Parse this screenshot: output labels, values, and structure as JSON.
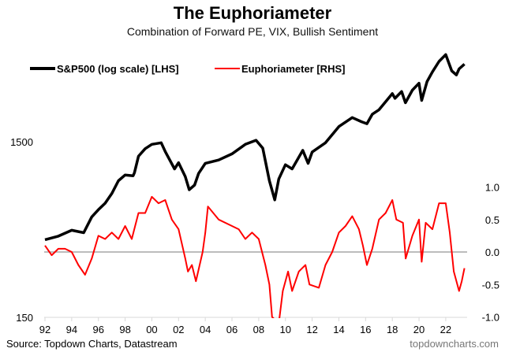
{
  "chart_data": {
    "type": "line",
    "title": "The Euphoriameter",
    "subtitle": "Combination of Forward PE, VIX, Bullish Sentiment",
    "source": "Source: Topdown Charts, Datastream",
    "brand": "topdowncharts.com",
    "x_ticks": [
      "92",
      "94",
      "96",
      "98",
      "00",
      "02",
      "04",
      "06",
      "08",
      "10",
      "12",
      "14",
      "16",
      "18",
      "20",
      "22"
    ],
    "x_tick_years": [
      1992,
      1994,
      1996,
      1998,
      2000,
      2002,
      2004,
      2006,
      2008,
      2010,
      2012,
      2014,
      2016,
      2018,
      2020,
      2022
    ],
    "xlim": [
      1992,
      2023.6
    ],
    "left_axis": {
      "scale": "log",
      "ticks": [
        "150",
        "1500"
      ],
      "tick_values": [
        150,
        1500
      ],
      "ylim": [
        150,
        6000
      ]
    },
    "right_axis": {
      "scale": "linear",
      "ticks": [
        "1.0",
        "0.5",
        "0.0",
        "-0.5",
        "-1.0"
      ],
      "tick_values": [
        1.0,
        0.5,
        0.0,
        -0.5,
        -1.0
      ],
      "ylim": [
        -1.0,
        1.0
      ]
    },
    "legend_placement": "top-left",
    "series": [
      {
        "name": "S&P500 (log scale) [LHS]",
        "axis": "left",
        "color": "#000000",
        "x": [
          1992,
          1993,
          1994,
          1994.9,
          1995.5,
          1996,
          1996.5,
          1997,
          1997.5,
          1998,
          1998.6,
          1998.7,
          1999,
          1999.5,
          2000,
          2000.7,
          2001,
          2001.7,
          2002,
          2002.5,
          2002.8,
          2003.2,
          2003.5,
          2004,
          2005,
          2006,
          2007,
          2007.8,
          2008.3,
          2008.8,
          2009.2,
          2009.5,
          2010,
          2010.5,
          2011.3,
          2011.7,
          2012,
          2013,
          2014,
          2015,
          2015.7,
          2016.1,
          2016.5,
          2017,
          2018,
          2018.2,
          2018.7,
          2018.98,
          2019.5,
          2020,
          2020.2,
          2020.6,
          2021,
          2021.5,
          2022,
          2022.45,
          2022.8,
          2023,
          2023.4
        ],
        "values": [
          415,
          435,
          470,
          455,
          560,
          615,
          670,
          760,
          900,
          970,
          960,
          1000,
          1240,
          1370,
          1450,
          1480,
          1320,
          1050,
          1140,
          950,
          800,
          850,
          990,
          1130,
          1180,
          1280,
          1450,
          1530,
          1380,
          900,
          700,
          920,
          1110,
          1050,
          1340,
          1130,
          1310,
          1480,
          1830,
          2060,
          1950,
          1900,
          2150,
          2280,
          2820,
          2650,
          2900,
          2500,
          2950,
          3230,
          2580,
          3300,
          3750,
          4300,
          4700,
          3800,
          3600,
          3900,
          4150
        ]
      },
      {
        "name": "Euphoriameter [RHS]",
        "axis": "right",
        "color": "#ff0000",
        "x": [
          1992,
          1992.5,
          1993,
          1993.5,
          1994,
          1994.5,
          1995,
          1995.5,
          1996,
          1996.5,
          1997,
          1997.5,
          1998,
          1998.5,
          1999,
          1999.5,
          2000,
          2000.5,
          2001,
          2001.5,
          2002,
          2002.5,
          2002.7,
          2003,
          2003.3,
          2003.8,
          2004,
          2004.2,
          2005,
          2006,
          2006.5,
          2007,
          2007.5,
          2008,
          2008.5,
          2008.8,
          2009,
          2009.5,
          2009.8,
          2010.2,
          2010.5,
          2011,
          2011.5,
          2011.8,
          2012.5,
          2013,
          2013.5,
          2014,
          2014.5,
          2015,
          2015.5,
          2015.8,
          2016.1,
          2016.5,
          2017,
          2017.5,
          2018,
          2018.3,
          2018.8,
          2019,
          2019.5,
          2020,
          2020.2,
          2020.5,
          2021,
          2021.5,
          2022,
          2022.3,
          2022.6,
          2023,
          2023.2,
          2023.4
        ],
        "values": [
          0.1,
          -0.05,
          0.05,
          0.05,
          0.0,
          -0.2,
          -0.35,
          -0.1,
          0.25,
          0.2,
          0.3,
          0.2,
          0.4,
          0.2,
          0.6,
          0.6,
          0.85,
          0.75,
          0.8,
          0.5,
          0.35,
          -0.1,
          -0.3,
          -0.2,
          -0.45,
          0.0,
          0.3,
          0.7,
          0.5,
          0.4,
          0.35,
          0.2,
          0.3,
          0.2,
          -0.2,
          -0.5,
          -1.0,
          -1.1,
          -0.6,
          -0.3,
          -0.6,
          -0.3,
          -0.2,
          -0.5,
          -0.55,
          -0.2,
          0.0,
          0.3,
          0.4,
          0.55,
          0.35,
          0.1,
          -0.2,
          0.05,
          0.5,
          0.6,
          0.8,
          0.5,
          0.45,
          -0.1,
          0.25,
          0.5,
          -0.15,
          0.45,
          0.35,
          0.75,
          0.75,
          0.3,
          -0.3,
          -0.6,
          -0.45,
          -0.25
        ]
      }
    ],
    "zero_line_color": "#a6a6a6"
  }
}
